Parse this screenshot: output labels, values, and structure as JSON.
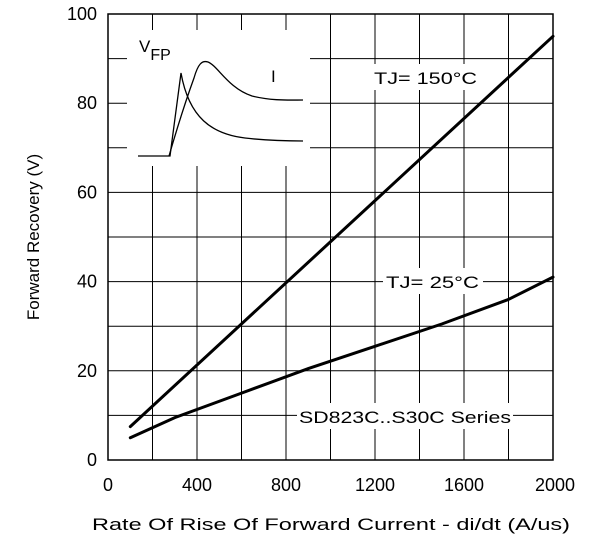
{
  "chart_data": {
    "type": "line",
    "xlabel": "Rate Of Rise Of Forward Current - di/dt (A/us)",
    "ylabel": "Forward Recovery (V)",
    "xlim": [
      0,
      2000
    ],
    "ylim": [
      0,
      100
    ],
    "xticks": [
      0,
      400,
      800,
      1200,
      1600,
      2000
    ],
    "yticks": [
      0,
      20,
      40,
      60,
      80,
      100
    ],
    "xgrid": [
      0,
      200,
      400,
      600,
      800,
      1000,
      1200,
      1400,
      1600,
      1800,
      2000
    ],
    "ygrid": [
      0,
      10,
      20,
      30,
      40,
      50,
      60,
      70,
      80,
      90,
      100
    ],
    "grid": true,
    "series": [
      {
        "name": "TJ= 150°C",
        "x": [
          100,
          2000
        ],
        "y": [
          7.5,
          95
        ]
      },
      {
        "name": "TJ= 25°C",
        "x": [
          100,
          300,
          600,
          900,
          1200,
          1500,
          1800,
          2000
        ],
        "y": [
          5,
          9.5,
          15,
          20.5,
          25.5,
          30.5,
          36,
          41
        ]
      }
    ],
    "annotations": {
      "tj150": "TJ= 150°C",
      "tj25": "TJ= 25°C",
      "series_note": "SD823C..S30C Series"
    },
    "inset": {
      "vfp_label": "VFP",
      "i_label": "I"
    }
  }
}
